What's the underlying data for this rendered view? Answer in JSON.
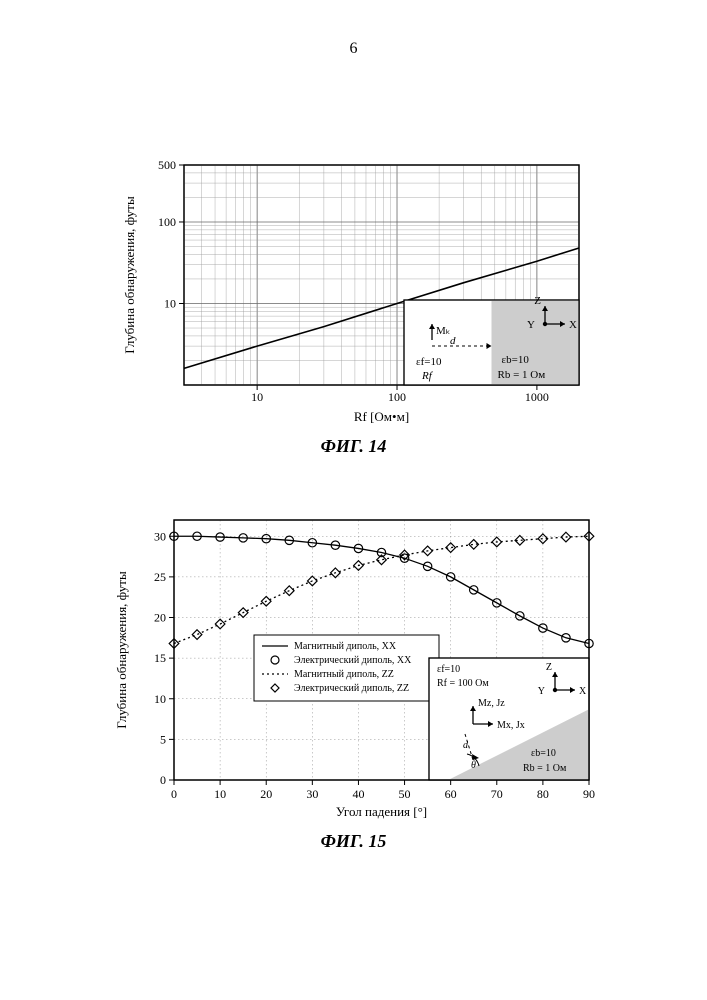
{
  "page_number": "6",
  "fig14": {
    "caption": "ФИГ. 14",
    "type": "line",
    "xaxis": {
      "label": "Rf [Ом•м]",
      "scale": "log",
      "min": 3,
      "max": 2000,
      "ticks": [
        10,
        100,
        1000
      ],
      "label_fontsize": 13,
      "tick_fontsize": 12
    },
    "yaxis": {
      "label": "Глубина обнаружения, футы",
      "scale": "log",
      "min": 1,
      "max": 500,
      "ticks": [
        10,
        100,
        500
      ],
      "label_fontsize": 13,
      "tick_fontsize": 12
    },
    "grid": {
      "major_color": "#666666",
      "minor_color": "#999999",
      "major_width": 0.8,
      "minor_width": 0.4
    },
    "series": {
      "color": "#000000",
      "width": 1.6,
      "x": [
        3,
        10,
        30,
        100,
        300,
        1000,
        2000
      ],
      "y": [
        1.6,
        3.0,
        5.2,
        10.0,
        18.0,
        33.0,
        48.0
      ]
    },
    "inset": {
      "bg_right": "#cdcdcd",
      "bg_left": "#ffffff",
      "border": "#000000",
      "labels": {
        "Mz": "Mₖ",
        "d": "d",
        "eps_f": "εf=10",
        "Rf": "Rf",
        "eps_b": "εb=10",
        "Rb": "Rb = 1 Ом",
        "axes": {
          "X": "X",
          "Y": "Y",
          "Z": "Z"
        }
      },
      "font_size": 11
    },
    "background_color": "#ffffff"
  },
  "fig15": {
    "caption": "ФИГ. 15",
    "type": "line",
    "xaxis": {
      "label": "Угол падения [°]",
      "scale": "linear",
      "min": 0,
      "max": 90,
      "tick_step": 10,
      "label_fontsize": 13,
      "tick_fontsize": 12
    },
    "yaxis": {
      "label": "Глубина обнаружения, футы",
      "scale": "linear",
      "min": 0,
      "max": 32,
      "ticks": [
        0,
        5,
        10,
        15,
        20,
        25,
        30
      ],
      "label_fontsize": 13,
      "tick_fontsize": 12
    },
    "grid": {
      "major_color": "#777777",
      "major_width": 0.4,
      "style": "dotted"
    },
    "legend": {
      "fontsize": 10,
      "border": "#000000",
      "bg": "#ffffff",
      "items": [
        {
          "label": "Магнитный диполь, XX",
          "type": "line",
          "color": "#000000",
          "dash": "solid"
        },
        {
          "label": "Электрический диполь, XX",
          "type": "marker",
          "marker": "circle",
          "color": "#000000"
        },
        {
          "label": "Магнитный диполь, ZZ",
          "type": "line",
          "color": "#000000",
          "dash": "dotted"
        },
        {
          "label": "Электрический диполь, ZZ",
          "type": "marker",
          "marker": "diamond",
          "color": "#000000"
        }
      ]
    },
    "series": {
      "xx_line": {
        "color": "#000000",
        "dash": "solid",
        "width": 1.3,
        "x": [
          0,
          5,
          10,
          15,
          20,
          25,
          30,
          35,
          40,
          45,
          50,
          55,
          60,
          65,
          70,
          75,
          80,
          85,
          90
        ],
        "y": [
          30.0,
          30.0,
          29.9,
          29.8,
          29.7,
          29.5,
          29.2,
          28.9,
          28.5,
          28.0,
          27.3,
          26.3,
          25.0,
          23.4,
          21.8,
          20.2,
          18.7,
          17.5,
          16.8
        ]
      },
      "xx_circle": {
        "color": "#000000",
        "marker": "circle",
        "size": 4.2,
        "x": [
          0,
          5,
          10,
          15,
          20,
          25,
          30,
          35,
          40,
          45,
          50,
          55,
          60,
          65,
          70,
          75,
          80,
          85,
          90
        ],
        "y": [
          30.0,
          30.0,
          29.9,
          29.8,
          29.7,
          29.5,
          29.2,
          28.9,
          28.5,
          28.0,
          27.3,
          26.3,
          25.0,
          23.4,
          21.8,
          20.2,
          18.7,
          17.5,
          16.8
        ]
      },
      "zz_line": {
        "color": "#000000",
        "dash": "dotted",
        "width": 1.3,
        "x": [
          0,
          5,
          10,
          15,
          20,
          25,
          30,
          35,
          40,
          45,
          50,
          55,
          60,
          65,
          70,
          75,
          80,
          85,
          90
        ],
        "y": [
          16.8,
          17.9,
          19.2,
          20.6,
          22.0,
          23.3,
          24.5,
          25.5,
          26.4,
          27.1,
          27.7,
          28.2,
          28.6,
          29.0,
          29.3,
          29.5,
          29.7,
          29.9,
          30.0
        ]
      },
      "zz_diamond": {
        "color": "#000000",
        "marker": "diamond",
        "size": 4.8,
        "x": [
          0,
          5,
          10,
          15,
          20,
          25,
          30,
          35,
          40,
          45,
          50,
          55,
          60,
          65,
          70,
          75,
          80,
          85,
          90
        ],
        "y": [
          16.8,
          17.9,
          19.2,
          20.6,
          22.0,
          23.3,
          24.5,
          25.5,
          26.4,
          27.1,
          27.7,
          28.2,
          28.6,
          29.0,
          29.3,
          29.5,
          29.7,
          29.9,
          30.0
        ]
      }
    },
    "inset": {
      "bg_top": "#ffffff",
      "bg_bottom": "#cdcdcd",
      "border": "#000000",
      "labels": {
        "eps_f": "εf=10",
        "Rf": "Rf = 100 Ом",
        "MzJz": "Mz, Jz",
        "MxJx": "Mx, Jx",
        "d": "d",
        "theta": "θ",
        "eps_b": "εb=10",
        "Rb": "Rb = 1 Ом",
        "axes": {
          "X": "X",
          "Y": "Y",
          "Z": "Z"
        }
      },
      "font_size": 10
    },
    "background_color": "#ffffff"
  }
}
